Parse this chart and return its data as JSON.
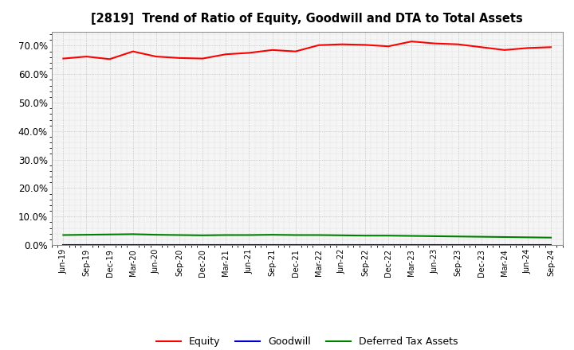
{
  "title": "[2819]  Trend of Ratio of Equity, Goodwill and DTA to Total Assets",
  "x_labels": [
    "Jun-19",
    "Sep-19",
    "Dec-19",
    "Mar-20",
    "Jun-20",
    "Sep-20",
    "Dec-20",
    "Mar-21",
    "Jun-21",
    "Sep-21",
    "Dec-21",
    "Mar-22",
    "Jun-22",
    "Sep-22",
    "Dec-22",
    "Mar-23",
    "Jun-23",
    "Sep-23",
    "Dec-23",
    "Mar-24",
    "Jun-24",
    "Sep-24"
  ],
  "equity": [
    65.5,
    66.2,
    65.3,
    68.0,
    66.2,
    65.7,
    65.5,
    67.0,
    67.5,
    68.5,
    68.0,
    70.2,
    70.5,
    70.3,
    69.8,
    71.5,
    70.8,
    70.5,
    69.5,
    68.5,
    69.2,
    69.5
  ],
  "goodwill": [
    0.0,
    0.0,
    0.0,
    0.0,
    0.0,
    0.0,
    0.0,
    0.0,
    0.0,
    0.0,
    0.0,
    0.0,
    0.0,
    0.0,
    0.0,
    0.0,
    0.0,
    0.0,
    0.0,
    0.0,
    0.0,
    0.0
  ],
  "dta": [
    3.5,
    3.6,
    3.7,
    3.8,
    3.6,
    3.5,
    3.4,
    3.5,
    3.5,
    3.6,
    3.5,
    3.5,
    3.4,
    3.3,
    3.3,
    3.2,
    3.1,
    3.0,
    2.9,
    2.8,
    2.7,
    2.6
  ],
  "equity_color": "#ff0000",
  "goodwill_color": "#0000cc",
  "dta_color": "#008000",
  "ylim": [
    0,
    75
  ],
  "yticks": [
    0,
    10,
    20,
    30,
    40,
    50,
    60,
    70
  ],
  "plot_bg_color": "#f5f5f5",
  "fig_bg_color": "#ffffff",
  "grid_color": "#999999",
  "legend_labels": [
    "Equity",
    "Goodwill",
    "Deferred Tax Assets"
  ]
}
